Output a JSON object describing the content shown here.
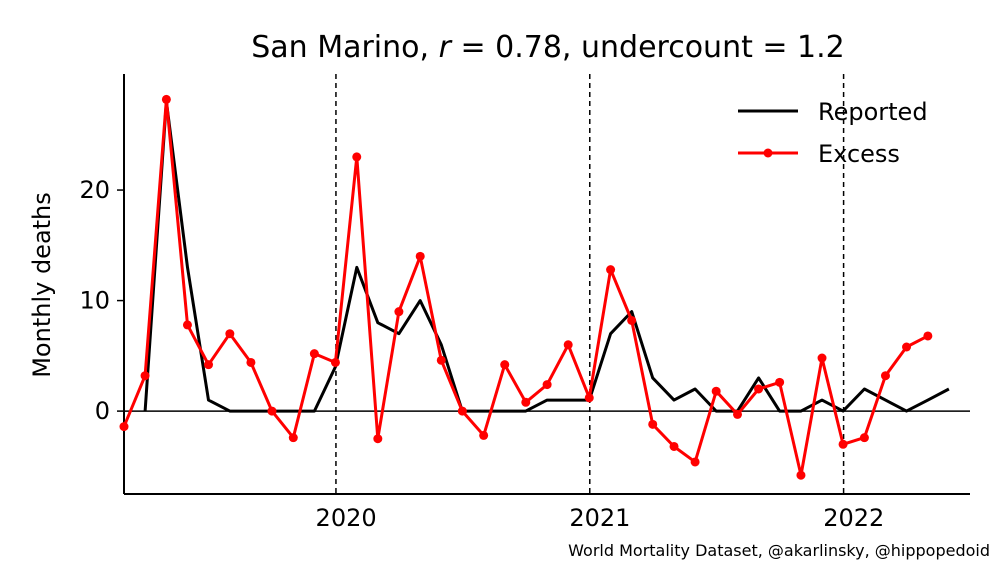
{
  "chart_data": {
    "type": "line",
    "title_parts": {
      "prefix": "San Marino, ",
      "r_symbol": "r",
      "r_value": " = 0.78, undercount = 1.2"
    },
    "ylabel": "Monthly deaths",
    "xlim": [
      2019.625,
      2022.958
    ],
    "ylim": [
      -7.5,
      30.5
    ],
    "x_ticks": [
      {
        "value": 2020.0,
        "label": "2020"
      },
      {
        "value": 2021.0,
        "label": "2021"
      },
      {
        "value": 2022.0,
        "label": "2022"
      }
    ],
    "y_ticks": [
      {
        "value": 0,
        "label": "0"
      },
      {
        "value": 10,
        "label": "10"
      },
      {
        "value": 20,
        "label": "20"
      }
    ],
    "zero_line": true,
    "vertical_dashed_lines": [
      2020.46,
      2021.46,
      2022.46
    ],
    "legend_placement": "top-right",
    "series": [
      {
        "name": "Reported",
        "color": "#000000",
        "markers": false,
        "points": [
          [
            2019.708,
            0
          ],
          [
            2019.792,
            28
          ],
          [
            2019.875,
            13
          ],
          [
            2019.958,
            1
          ],
          [
            2020.042,
            0
          ],
          [
            2020.125,
            0
          ],
          [
            2020.208,
            0
          ],
          [
            2020.292,
            0
          ],
          [
            2020.375,
            0
          ],
          [
            2020.458,
            4
          ],
          [
            2020.542,
            13
          ],
          [
            2020.625,
            8
          ],
          [
            2020.708,
            7
          ],
          [
            2020.792,
            10
          ],
          [
            2020.875,
            6
          ],
          [
            2020.958,
            0
          ],
          [
            2021.042,
            0
          ],
          [
            2021.125,
            0
          ],
          [
            2021.208,
            0
          ],
          [
            2021.292,
            1
          ],
          [
            2021.375,
            1
          ],
          [
            2021.458,
            1
          ],
          [
            2021.542,
            7
          ],
          [
            2021.625,
            9
          ],
          [
            2021.708,
            3
          ],
          [
            2021.792,
            1
          ],
          [
            2021.875,
            2
          ],
          [
            2021.958,
            0
          ],
          [
            2022.042,
            0
          ],
          [
            2022.125,
            3
          ],
          [
            2022.208,
            0
          ],
          [
            2022.292,
            0
          ],
          [
            2022.375,
            1
          ],
          [
            2022.458,
            0
          ],
          [
            2022.542,
            2
          ],
          [
            2022.625,
            1
          ],
          [
            2022.708,
            0
          ],
          [
            2022.792,
            1
          ],
          [
            2022.875,
            2
          ]
        ]
      },
      {
        "name": "Excess",
        "color": "#ff0000",
        "markers": true,
        "points": [
          [
            2019.625,
            -1.4
          ],
          [
            2019.708,
            3.2
          ],
          [
            2019.792,
            28.2
          ],
          [
            2019.875,
            7.8
          ],
          [
            2019.958,
            4.2
          ],
          [
            2020.042,
            7.0
          ],
          [
            2020.125,
            4.4
          ],
          [
            2020.208,
            0.0
          ],
          [
            2020.292,
            -2.4
          ],
          [
            2020.375,
            5.2
          ],
          [
            2020.458,
            4.4
          ],
          [
            2020.542,
            23.0
          ],
          [
            2020.625,
            -2.5
          ],
          [
            2020.708,
            9.0
          ],
          [
            2020.792,
            14.0
          ],
          [
            2020.875,
            4.6
          ],
          [
            2020.958,
            0.0
          ],
          [
            2021.042,
            -2.2
          ],
          [
            2021.125,
            4.2
          ],
          [
            2021.208,
            0.8
          ],
          [
            2021.292,
            2.4
          ],
          [
            2021.375,
            6.0
          ],
          [
            2021.458,
            1.2
          ],
          [
            2021.542,
            12.8
          ],
          [
            2021.625,
            8.2
          ],
          [
            2021.708,
            -1.2
          ],
          [
            2021.792,
            -3.2
          ],
          [
            2021.875,
            -4.6
          ],
          [
            2021.958,
            1.8
          ],
          [
            2022.042,
            -0.3
          ],
          [
            2022.125,
            2.0
          ],
          [
            2022.208,
            2.6
          ],
          [
            2022.292,
            -5.8
          ],
          [
            2022.375,
            4.8
          ],
          [
            2022.458,
            -3.0
          ],
          [
            2022.542,
            -2.4
          ],
          [
            2022.625,
            3.2
          ],
          [
            2022.708,
            5.8
          ],
          [
            2022.792,
            6.8
          ]
        ]
      }
    ],
    "credit": "World Mortality Dataset, @akarlinsky, @hippopedoid"
  }
}
